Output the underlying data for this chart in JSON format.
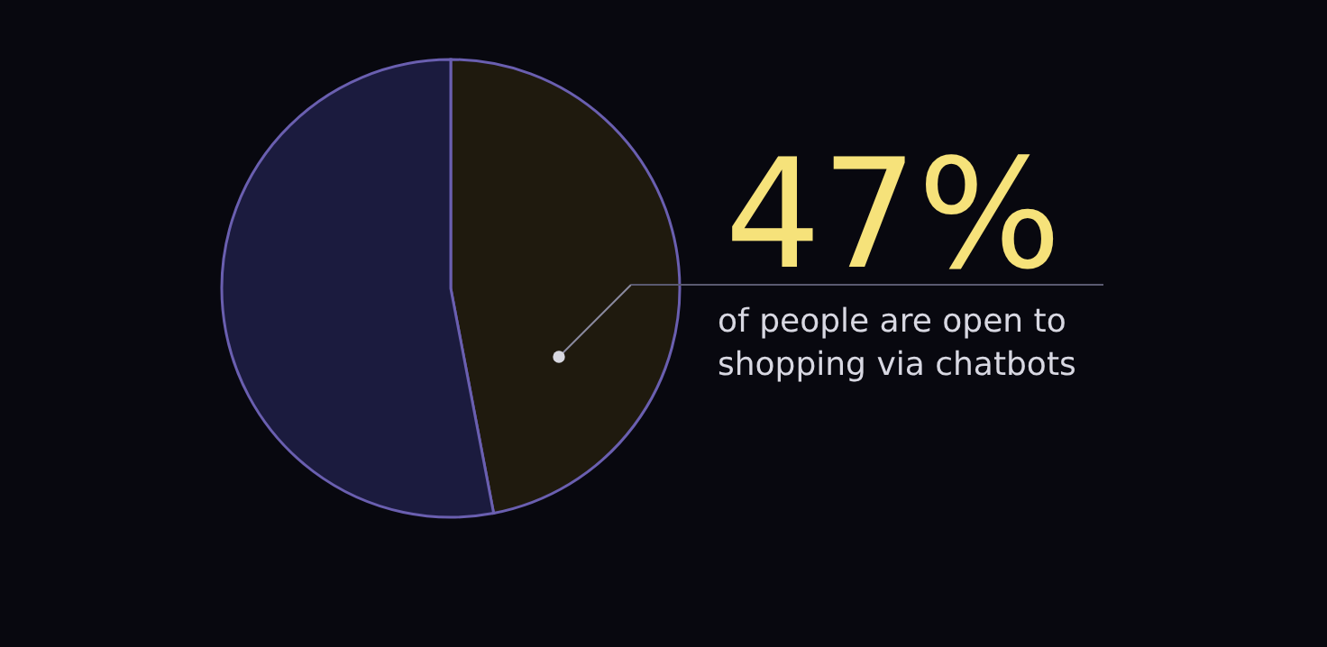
{
  "chart_data": {
    "type": "pie",
    "categories": [
      null,
      null
    ],
    "values": [
      47,
      53
    ],
    "colors": [
      "#1f1a0e",
      "#1b1b3e"
    ],
    "value_labels": [
      "47%",
      null
    ],
    "annotations": [
      "of people are open to\nshopping via chatbots"
    ]
  }
}
